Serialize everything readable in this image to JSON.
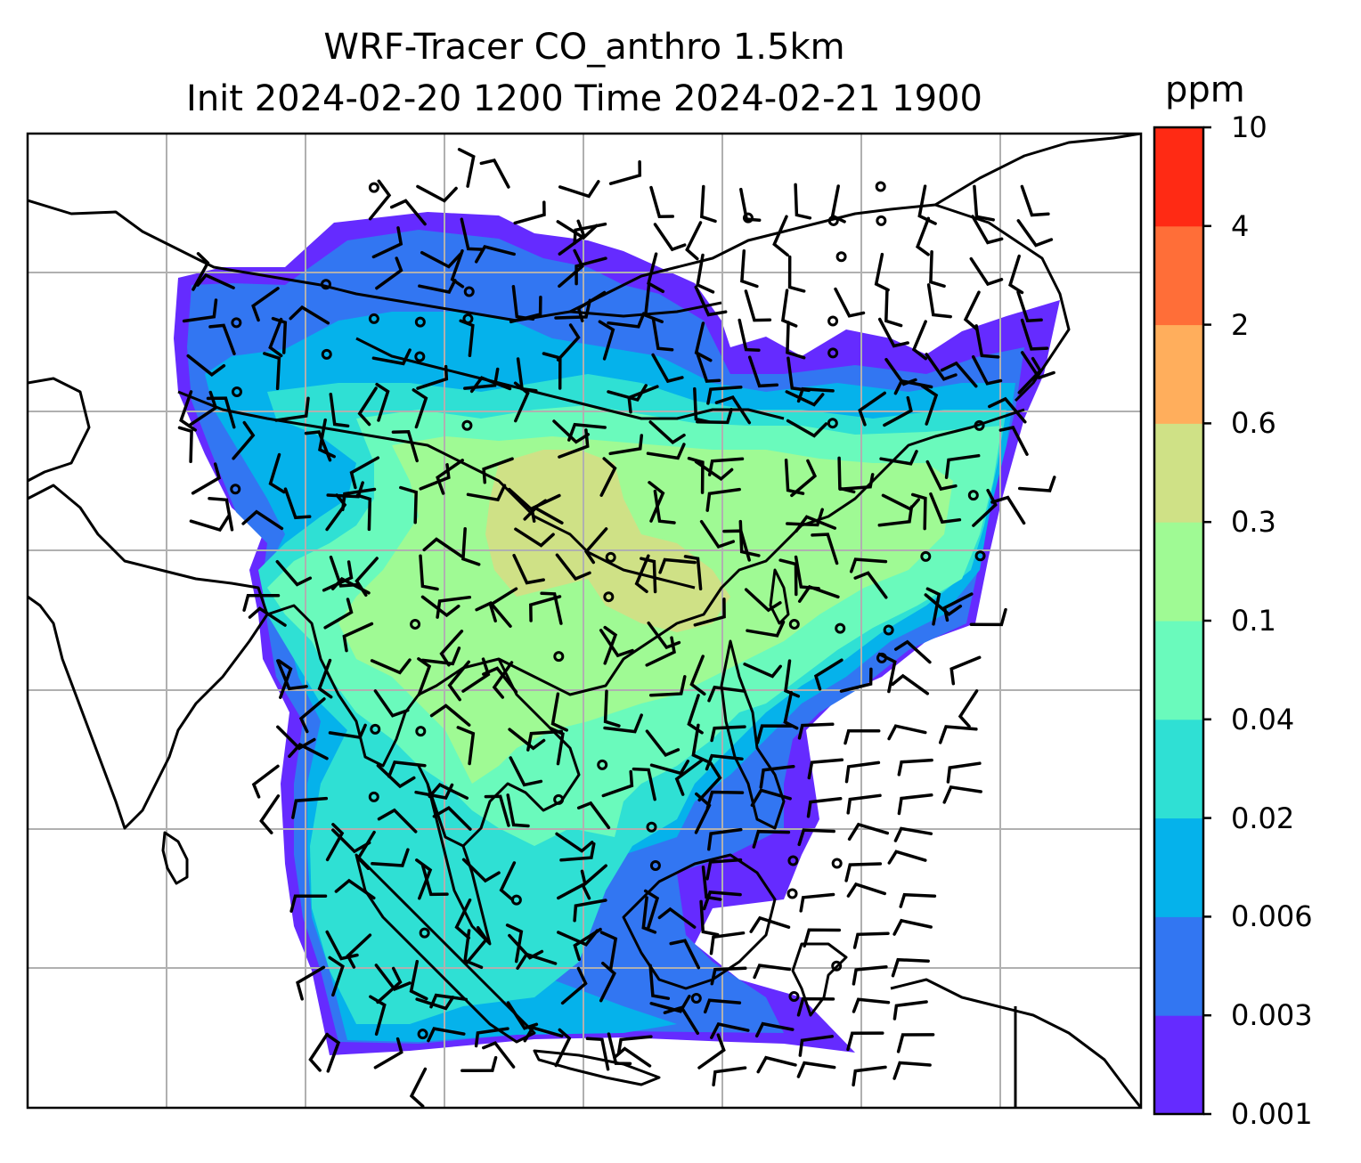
{
  "title_line1": "WRF-Tracer CO_anthro 1.5km",
  "title_line2": "Init 2024-02-20 1200 Time 2024-02-21 1900",
  "colorbar": {
    "unit": "ppm",
    "levels": [
      "0.001",
      "0.003",
      "0.006",
      "0.02",
      "0.04",
      "0.1",
      "0.3",
      "0.6",
      "2",
      "4",
      "10"
    ],
    "colors": [
      "#652bff",
      "#3276f2",
      "#05b2eb",
      "#2fe0d4",
      "#6afabc",
      "#9ffa94",
      "#cfe186",
      "#ffae5c",
      "#ff6e38",
      "#ff2a14"
    ]
  },
  "map": {
    "gridlines": "on",
    "overlay": "wind barbs and calm-wind circles",
    "coastlines": "on"
  }
}
